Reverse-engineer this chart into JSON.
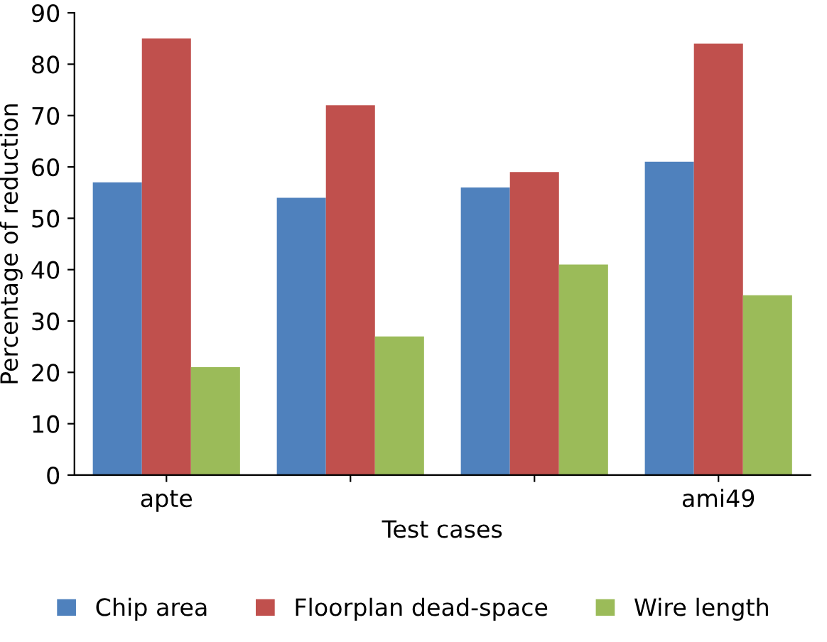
{
  "chart_data": {
    "type": "bar",
    "xlabel": "Test cases",
    "ylabel": "Percentage of reduction",
    "categories": [
      "apte",
      null,
      null,
      "ami49"
    ],
    "series": [
      {
        "name": "Chip area",
        "color": "#4f81bd",
        "values": [
          57,
          54,
          56,
          61
        ]
      },
      {
        "name": "Floorplan dead-space",
        "color": "#c0504d",
        "values": [
          85,
          72,
          59,
          84
        ]
      },
      {
        "name": "Wire length",
        "color": "#9bbb59",
        "values": [
          21,
          27,
          41,
          35
        ]
      }
    ],
    "ylim": [
      0,
      90
    ],
    "yticks": [
      0,
      10,
      20,
      30,
      40,
      50,
      60,
      70,
      80,
      90
    ],
    "grid": false,
    "legend": "bottom"
  }
}
